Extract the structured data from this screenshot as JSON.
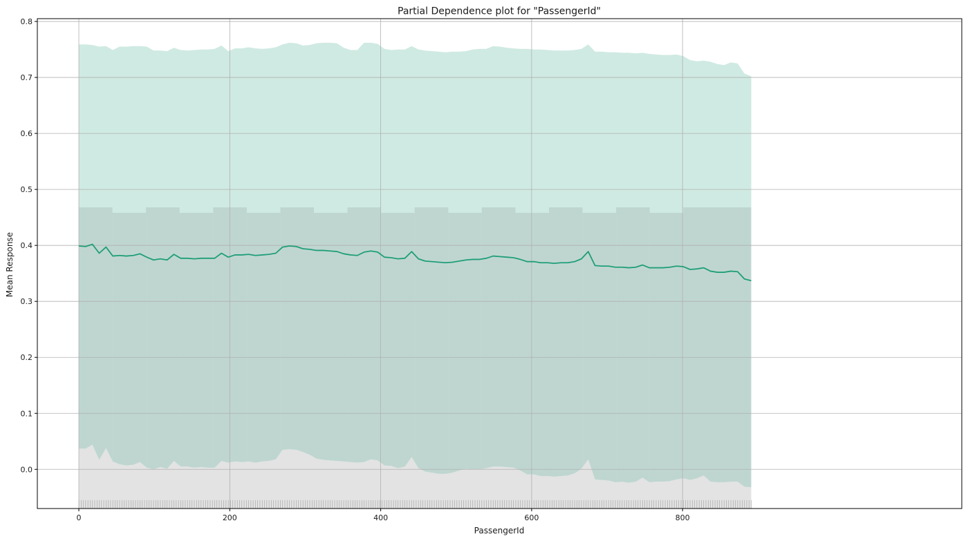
{
  "chart_data": {
    "type": "line",
    "title": "Partial Dependence plot for \"PassengerId\"",
    "xlabel": "PassengerId",
    "ylabel": "Mean Response",
    "xlim": [
      -55,
      1170
    ],
    "ylim": [
      -0.07,
      0.805
    ],
    "xticks": [
      0,
      200,
      400,
      600,
      800
    ],
    "yticks": [
      0.0,
      0.1,
      0.2,
      0.3,
      0.4,
      0.5,
      0.6,
      0.7,
      0.8
    ],
    "grid": true,
    "colors": {
      "line": "#1f9e78",
      "ci_band": "#cfeae2",
      "histogram": "#bfd6d0",
      "lower_region": "#e3e3e3",
      "grid": "#b0b0b0",
      "rug": "#a0a0a0"
    },
    "mean_response": {
      "x": [
        0,
        9,
        18,
        27,
        36,
        45,
        54,
        63,
        72,
        81,
        90,
        99,
        108,
        117,
        126,
        135,
        144,
        153,
        162,
        171,
        180,
        189,
        198,
        207,
        216,
        225,
        234,
        243,
        252,
        261,
        270,
        279,
        288,
        297,
        306,
        315,
        324,
        333,
        342,
        351,
        360,
        369,
        378,
        387,
        396,
        405,
        414,
        423,
        432,
        441,
        450,
        459,
        468,
        477,
        486,
        495,
        504,
        513,
        522,
        531,
        540,
        549,
        558,
        567,
        576,
        585,
        594,
        603,
        612,
        621,
        630,
        639,
        648,
        657,
        666,
        675,
        684,
        693,
        702,
        711,
        720,
        729,
        738,
        747,
        756,
        765,
        774,
        783,
        792,
        801,
        810,
        819,
        828,
        837,
        846,
        855,
        864,
        873,
        882,
        891
      ],
      "y": [
        0.399,
        0.398,
        0.402,
        0.386,
        0.397,
        0.381,
        0.382,
        0.381,
        0.382,
        0.385,
        0.379,
        0.374,
        0.376,
        0.374,
        0.384,
        0.377,
        0.377,
        0.376,
        0.377,
        0.377,
        0.377,
        0.386,
        0.379,
        0.383,
        0.383,
        0.384,
        0.382,
        0.383,
        0.384,
        0.386,
        0.397,
        0.399,
        0.398,
        0.394,
        0.393,
        0.391,
        0.391,
        0.39,
        0.389,
        0.385,
        0.383,
        0.382,
        0.388,
        0.39,
        0.388,
        0.379,
        0.378,
        0.376,
        0.377,
        0.389,
        0.376,
        0.372,
        0.371,
        0.37,
        0.369,
        0.37,
        0.372,
        0.374,
        0.375,
        0.375,
        0.377,
        0.381,
        0.38,
        0.379,
        0.378,
        0.375,
        0.371,
        0.371,
        0.369,
        0.369,
        0.368,
        0.369,
        0.369,
        0.371,
        0.376,
        0.389,
        0.364,
        0.363,
        0.363,
        0.361,
        0.361,
        0.36,
        0.361,
        0.365,
        0.36,
        0.36,
        0.36,
        0.361,
        0.363,
        0.362,
        0.357,
        0.358,
        0.36,
        0.354,
        0.352,
        0.352,
        0.354,
        0.353,
        0.34,
        0.337
      ]
    },
    "ci_upper": [
      0.759,
      0.759,
      0.758,
      0.755,
      0.756,
      0.749,
      0.755,
      0.755,
      0.756,
      0.756,
      0.755,
      0.748,
      0.748,
      0.747,
      0.753,
      0.749,
      0.748,
      0.749,
      0.75,
      0.75,
      0.751,
      0.757,
      0.747,
      0.752,
      0.752,
      0.754,
      0.752,
      0.751,
      0.752,
      0.754,
      0.759,
      0.762,
      0.761,
      0.757,
      0.758,
      0.761,
      0.762,
      0.762,
      0.761,
      0.753,
      0.749,
      0.749,
      0.762,
      0.762,
      0.76,
      0.751,
      0.749,
      0.75,
      0.75,
      0.756,
      0.75,
      0.748,
      0.747,
      0.746,
      0.745,
      0.746,
      0.746,
      0.747,
      0.75,
      0.751,
      0.751,
      0.756,
      0.755,
      0.753,
      0.752,
      0.751,
      0.751,
      0.75,
      0.75,
      0.749,
      0.748,
      0.748,
      0.748,
      0.749,
      0.751,
      0.759,
      0.746,
      0.746,
      0.745,
      0.745,
      0.744,
      0.744,
      0.743,
      0.744,
      0.742,
      0.741,
      0.74,
      0.74,
      0.741,
      0.738,
      0.731,
      0.729,
      0.73,
      0.728,
      0.724,
      0.722,
      0.727,
      0.725,
      0.707,
      0.702
    ],
    "ci_lower": [
      0.037,
      0.037,
      0.044,
      0.017,
      0.038,
      0.014,
      0.009,
      0.007,
      0.008,
      0.013,
      0.003,
      0.0,
      0.004,
      0.001,
      0.015,
      0.005,
      0.005,
      0.003,
      0.004,
      0.003,
      0.003,
      0.015,
      0.012,
      0.014,
      0.013,
      0.014,
      0.012,
      0.014,
      0.015,
      0.018,
      0.035,
      0.036,
      0.035,
      0.031,
      0.026,
      0.019,
      0.017,
      0.016,
      0.015,
      0.014,
      0.013,
      0.012,
      0.013,
      0.018,
      0.016,
      0.007,
      0.006,
      0.002,
      0.005,
      0.022,
      0.002,
      -0.004,
      -0.006,
      -0.008,
      -0.008,
      -0.006,
      -0.002,
      0.001,
      0.0,
      0.0,
      0.002,
      0.005,
      0.005,
      0.004,
      0.003,
      -0.002,
      -0.009,
      -0.009,
      -0.012,
      -0.012,
      -0.013,
      -0.012,
      -0.011,
      -0.007,
      0.001,
      0.018,
      -0.018,
      -0.019,
      -0.02,
      -0.023,
      -0.022,
      -0.024,
      -0.022,
      -0.015,
      -0.023,
      -0.022,
      -0.022,
      -0.021,
      -0.018,
      -0.016,
      -0.019,
      -0.016,
      -0.011,
      -0.022,
      -0.023,
      -0.023,
      -0.022,
      -0.022,
      -0.031,
      -0.032
    ],
    "histogram": {
      "bin_edges": [
        0,
        44.5,
        89,
        133.5,
        178,
        222.5,
        267,
        311.5,
        356,
        400.5,
        445,
        489.5,
        534,
        578.5,
        623,
        667.5,
        712,
        756.5,
        801,
        891
      ],
      "heights": [
        0.468,
        0.458,
        0.468,
        0.458,
        0.468,
        0.458,
        0.468,
        0.458,
        0.468,
        0.458,
        0.468,
        0.458,
        0.468,
        0.458,
        0.468,
        0.458,
        0.468,
        0.458,
        0.468
      ]
    },
    "rug": {
      "x_start": 0,
      "x_end": 891,
      "step": 3,
      "y_bottom": -0.07,
      "y_top": -0.055
    }
  }
}
